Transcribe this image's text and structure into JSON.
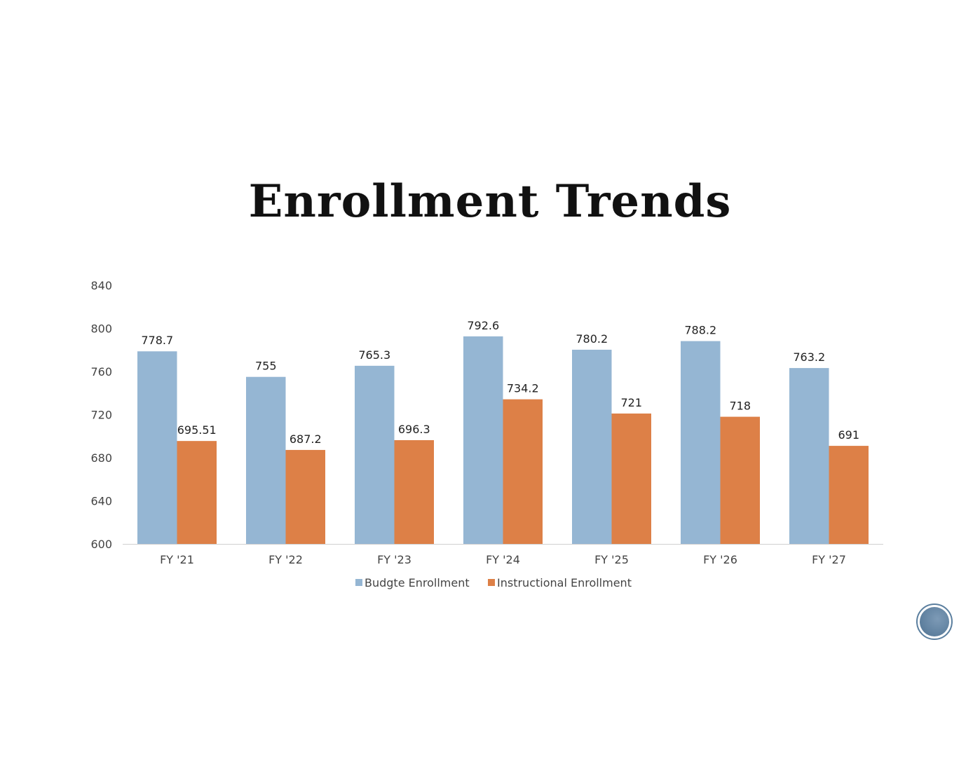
{
  "slide": {
    "title": "Enrollment Trends"
  },
  "colors": {
    "budget": "#95b6d3",
    "instructional": "#dd8047",
    "axis": "#d0d0d0"
  },
  "chart_data": {
    "type": "bar",
    "title": "",
    "xlabel": "",
    "ylabel": "",
    "ylim": [
      600,
      840
    ],
    "yticks": [
      "600",
      "640",
      "680",
      "720",
      "760",
      "800",
      "840"
    ],
    "grid": false,
    "legend": "bottom",
    "categories": [
      "FY '21",
      "FY '22",
      "FY '23",
      "FY '24",
      "FY '25",
      "FY '26",
      "FY '27"
    ],
    "series": [
      {
        "name": "Budgte Enrollment",
        "values": [
          778.7,
          755,
          765.3,
          792.6,
          780.2,
          788.2,
          763.2
        ],
        "labels": [
          "778.7",
          "755",
          "765.3",
          "792.6",
          "780.2",
          "788.2",
          "763.2"
        ]
      },
      {
        "name": "Instructional Enrollment",
        "values": [
          695.51,
          687.2,
          696.3,
          734.2,
          721,
          718,
          691
        ],
        "labels": [
          "695.51",
          "687.2",
          "696.3",
          "734.2",
          "721",
          "718",
          "691"
        ]
      }
    ]
  }
}
